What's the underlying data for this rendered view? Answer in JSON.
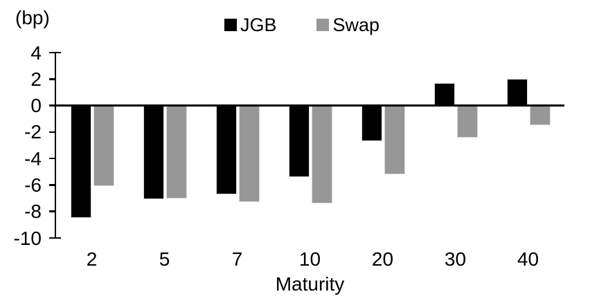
{
  "chart_data": {
    "type": "bar",
    "title": "",
    "unit_label": "(bp)",
    "xlabel": "Maturity",
    "ylabel": "(bp)",
    "categories": [
      "2",
      "5",
      "7",
      "10",
      "20",
      "30",
      "40"
    ],
    "series": [
      {
        "name": "JGB",
        "color": "#000000",
        "values": [
          -8.5,
          -7.1,
          -6.7,
          -5.4,
          -2.7,
          1.7,
          2.0
        ]
      },
      {
        "name": "Swap",
        "color": "#979797",
        "values": [
          -6.1,
          -7.0,
          -7.3,
          -7.4,
          -5.2,
          -2.4,
          -1.5
        ]
      }
    ],
    "ylim": [
      -10,
      4
    ],
    "yticks": [
      4,
      2,
      0,
      -2,
      -4,
      -6,
      -8,
      -10
    ],
    "grid": false,
    "zero_baseline": true,
    "legend_position": "top-center",
    "axis_color": "#000000",
    "bar_border_color": "#d9d9d9"
  }
}
